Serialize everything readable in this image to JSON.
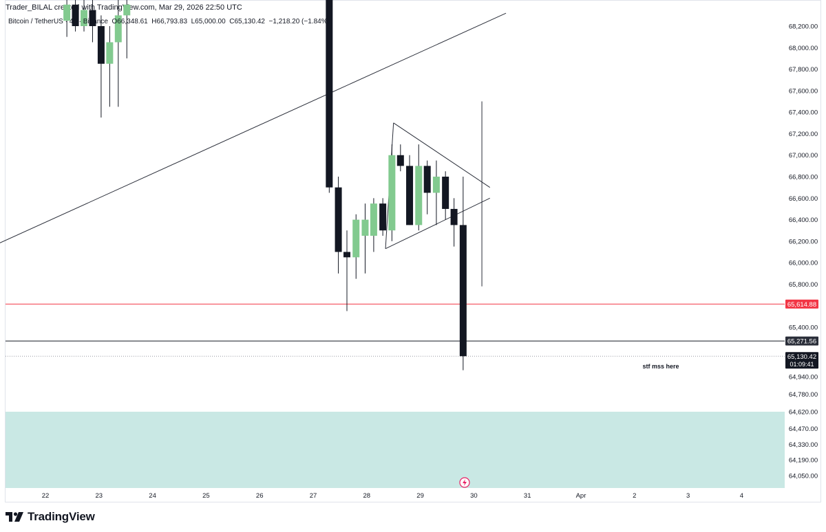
{
  "header": {
    "creator_line": "Trader_BILAL created with TradingView.com, Mar 29, 2026 22:50 UTC"
  },
  "symbol": {
    "name": "Bitcoin / TetherUS · 4h · Binance",
    "o_label": "O",
    "o_value": "66,348.61",
    "h_label": "H",
    "h_value": "66,793.83",
    "l_label": "L",
    "l_value": "65,000.00",
    "c_label": "C",
    "c_value": "65,130.42",
    "change": "−1,218.20 (−1.84%)"
  },
  "branding": {
    "logo_text": "TradingView"
  },
  "chart_data": {
    "type": "candlestick",
    "colors": {
      "up": "#82ca8f",
      "down": "#131722",
      "red_line": "#f23645",
      "zone": "#c9e8e4",
      "text": "#131722"
    },
    "x_ticks": [
      "22",
      "23",
      "24",
      "25",
      "26",
      "27",
      "28",
      "29",
      "30",
      "31",
      "Apr",
      "2",
      "3",
      "4"
    ],
    "y_ticks": [
      {
        "label": "68,200.00",
        "value": 68200
      },
      {
        "label": "68,000.00",
        "value": 68000
      },
      {
        "label": "67,800.00",
        "value": 67800
      },
      {
        "label": "67,600.00",
        "value": 67600
      },
      {
        "label": "67,400.00",
        "value": 67400
      },
      {
        "label": "67,200.00",
        "value": 67200
      },
      {
        "label": "67,000.00",
        "value": 67000
      },
      {
        "label": "66,800.00",
        "value": 66800
      },
      {
        "label": "66,600.00",
        "value": 66600
      },
      {
        "label": "66,400.00",
        "value": 66400
      },
      {
        "label": "66,200.00",
        "value": 66200
      },
      {
        "label": "66,000.00",
        "value": 66000
      },
      {
        "label": "65,800.00",
        "value": 65800
      },
      {
        "label": "65,400.00",
        "value": 65400
      },
      {
        "label": "64,940.00",
        "value": 64940
      },
      {
        "label": "64,780.00",
        "value": 64780
      },
      {
        "label": "64,620.00",
        "value": 64620
      },
      {
        "label": "64,470.00",
        "value": 64470
      },
      {
        "label": "64,330.00",
        "value": 64330
      },
      {
        "label": "64,190.00",
        "value": 64190
      },
      {
        "label": "64,050.00",
        "value": 64050
      }
    ],
    "price_labels": [
      {
        "text": "65,614.88",
        "value": 65614.88,
        "style": "red"
      },
      {
        "text": "65,271.56",
        "value": 65271.56,
        "style": "dark"
      },
      {
        "text": "65,130.42",
        "sub": "01:09:41",
        "value": 65130.42,
        "style": "current"
      }
    ],
    "horizontal_lines": [
      {
        "name": "red-level-line",
        "value": 65614.88,
        "color": "#f23645",
        "dashed": false
      },
      {
        "name": "black-level-line",
        "value": 65271.56,
        "color": "#131722",
        "dashed": false
      },
      {
        "name": "current-price-line",
        "value": 65130.42,
        "color": "#9598a1",
        "dashed": true
      }
    ],
    "demand_zone": {
      "from": 64620,
      "to": 64000
    },
    "annotation": {
      "text": "stf mss here"
    },
    "candles": [
      {
        "t": 22.4,
        "o": 68250,
        "h": 68500,
        "l": 68100,
        "c": 68400
      },
      {
        "t": 22.56,
        "o": 68400,
        "h": 68500,
        "l": 68150,
        "c": 68200
      },
      {
        "t": 22.72,
        "o": 68200,
        "h": 68500,
        "l": 68150,
        "c": 68350
      },
      {
        "t": 22.88,
        "o": 68350,
        "h": 68500,
        "l": 68050,
        "c": 68200
      },
      {
        "t": 23.04,
        "o": 68200,
        "h": 68300,
        "l": 67350,
        "c": 67850
      },
      {
        "t": 23.2,
        "o": 67850,
        "h": 68200,
        "l": 67450,
        "c": 68050
      },
      {
        "t": 23.36,
        "o": 68050,
        "h": 68500,
        "l": 67450,
        "c": 68300
      },
      {
        "t": 23.52,
        "o": 68300,
        "h": 68500,
        "l": 67900,
        "c": 68400
      },
      {
        "t": 27.3,
        "o": 68500,
        "h": 68500,
        "l": 66650,
        "c": 66700
      },
      {
        "t": 27.47,
        "o": 66700,
        "h": 66800,
        "l": 65900,
        "c": 66100
      },
      {
        "t": 27.63,
        "o": 66100,
        "h": 66300,
        "l": 65550,
        "c": 66050
      },
      {
        "t": 27.8,
        "o": 66050,
        "h": 66450,
        "l": 65850,
        "c": 66400
      },
      {
        "t": 27.97,
        "o": 66250,
        "h": 66550,
        "l": 65900,
        "c": 66400
      },
      {
        "t": 28.13,
        "o": 66250,
        "h": 66600,
        "l": 66100,
        "c": 66550
      },
      {
        "t": 28.3,
        "o": 66550,
        "h": 66600,
        "l": 66250,
        "c": 66300
      },
      {
        "t": 28.47,
        "o": 66300,
        "h": 67100,
        "l": 66200,
        "c": 67000
      },
      {
        "t": 28.63,
        "o": 67000,
        "h": 67100,
        "l": 66850,
        "c": 66900
      },
      {
        "t": 28.8,
        "o": 66900,
        "h": 67000,
        "l": 66350,
        "c": 66350
      },
      {
        "t": 28.97,
        "o": 66350,
        "h": 67100,
        "l": 66300,
        "c": 66900
      },
      {
        "t": 29.13,
        "o": 66900,
        "h": 66950,
        "l": 66450,
        "c": 66650
      },
      {
        "t": 29.3,
        "o": 66650,
        "h": 66950,
        "l": 66350,
        "c": 66800
      },
      {
        "t": 29.47,
        "o": 66800,
        "h": 66850,
        "l": 66400,
        "c": 66500
      },
      {
        "t": 29.63,
        "o": 66500,
        "h": 66600,
        "l": 66150,
        "c": 66350
      },
      {
        "t": 29.8,
        "o": 66350,
        "h": 66800,
        "l": 65000,
        "c": 65130.42
      }
    ],
    "drawn_lines": [
      {
        "name": "rising-trendline",
        "from": {
          "t": 21.0,
          "p": 66150
        },
        "to": {
          "t": 30.6,
          "p": 68320
        }
      },
      {
        "name": "triangle-upper-line",
        "from": {
          "t": 28.5,
          "p": 67300
        },
        "to": {
          "t": 30.3,
          "p": 66700
        }
      },
      {
        "name": "triangle-lower-line",
        "from": {
          "t": 28.35,
          "p": 66130
        },
        "to": {
          "t": 30.3,
          "p": 66600
        }
      },
      {
        "name": "triangle-left-edge",
        "from": {
          "t": 28.5,
          "p": 67300
        },
        "to": {
          "t": 28.35,
          "p": 66130
        }
      },
      {
        "name": "spike-wick-line",
        "from": {
          "t": 30.15,
          "p": 67500
        },
        "to": {
          "t": 30.15,
          "p": 65780
        }
      }
    ]
  }
}
